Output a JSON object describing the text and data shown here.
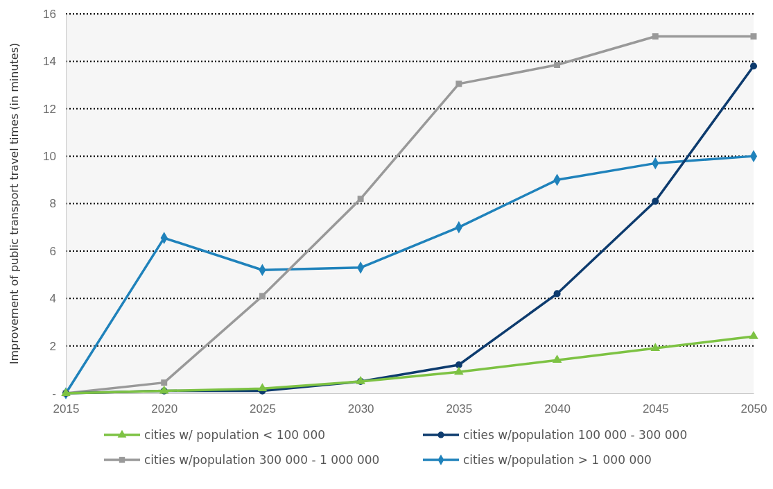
{
  "chart_data": {
    "type": "line",
    "ylabel": "Improvement of public transport  travel times (in minutes)",
    "categories": [
      "2015",
      "2020",
      "2025",
      "2030",
      "2035",
      "2040",
      "2045",
      "2050"
    ],
    "series": [
      {
        "name": "cities w/ population < 100 000",
        "color": "#7dc243",
        "marker": "triangle",
        "values": [
          0,
          0.1,
          0.2,
          0.5,
          0.9,
          1.4,
          1.9,
          2.4
        ]
      },
      {
        "name": "cities w/population 100 000 - 300 000",
        "color": "#0d3b6e",
        "marker": "circle",
        "values": [
          0,
          0.1,
          0.1,
          0.5,
          1.2,
          4.2,
          8.1,
          13.8
        ]
      },
      {
        "name": "cities w/population 300 000 - 1 000 000",
        "color": "#999999",
        "marker": "square",
        "values": [
          0,
          0.45,
          4.1,
          8.2,
          13.05,
          13.85,
          15.05,
          15.05
        ]
      },
      {
        "name": "cities w/population > 1 000 000",
        "color": "#1f82bb",
        "marker": "diamond",
        "values": [
          0,
          6.55,
          5.2,
          5.3,
          7.0,
          9.0,
          9.7,
          10.0
        ]
      }
    ],
    "ylim": [
      0,
      16
    ],
    "yticks": [
      {
        "value": 0,
        "label": "-"
      },
      2,
      4,
      6,
      8,
      10,
      12,
      14,
      16
    ],
    "grid": "y",
    "legend": "bottom"
  }
}
